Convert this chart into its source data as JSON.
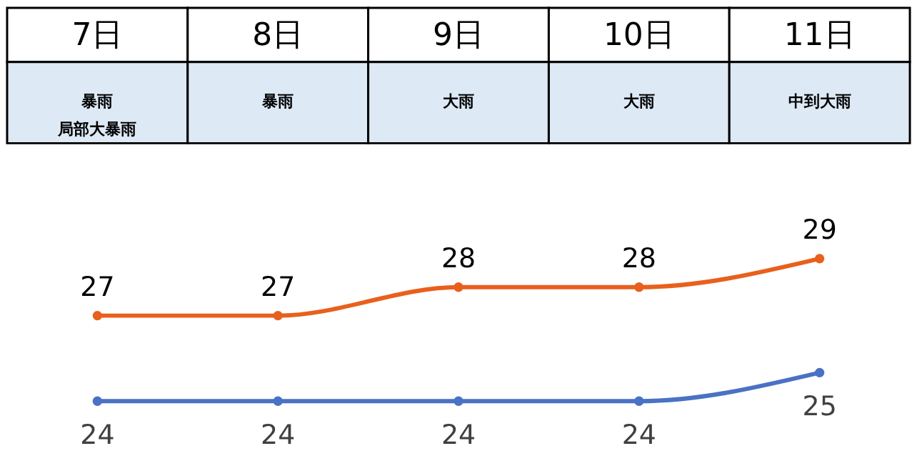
{
  "chart_data": {
    "type": "line",
    "categories": [
      "7日",
      "8日",
      "9日",
      "10日",
      "11日"
    ],
    "annotations": [
      "暴雨局部大暴雨",
      "暴雨",
      "大雨",
      "大雨",
      "中到大雨"
    ],
    "series": [
      {
        "color": "#e8601c",
        "values": [
          27,
          27,
          28,
          28,
          29
        ]
      },
      {
        "color": "#4a72c4",
        "values": [
          24,
          24,
          24,
          24,
          25
        ]
      }
    ],
    "data_labels": true,
    "marker": "circle",
    "line_style": "solid"
  }
}
